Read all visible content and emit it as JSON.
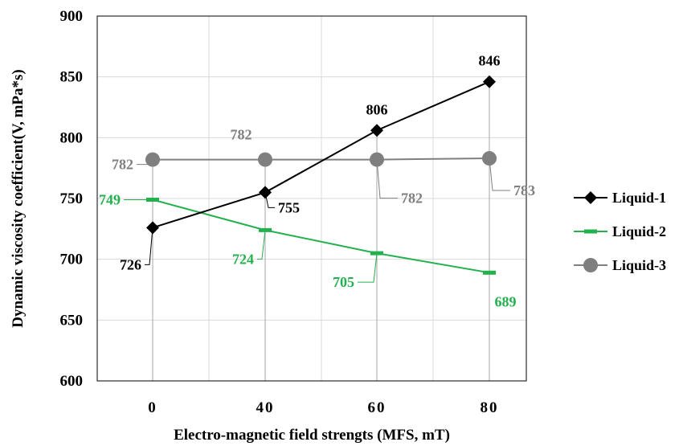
{
  "chart_data": {
    "type": "line",
    "xlabel": "Electro-magnetic field strengts (MFS, mT)",
    "ylabel": "Dynamic viscosity coefficient(V, mPa*s)",
    "categories": [
      "0",
      "40",
      "60",
      "80"
    ],
    "ylim": [
      600,
      900
    ],
    "yticks": [
      "600",
      "650",
      "700",
      "750",
      "800",
      "850",
      "900"
    ],
    "grid": true,
    "legend_position": "right",
    "series": [
      {
        "name": "Liquid-1",
        "values": [
          726,
          755,
          806,
          846
        ],
        "labels": [
          "726",
          "755",
          "806",
          "846"
        ],
        "color": "#000000",
        "marker": "diamond"
      },
      {
        "name": "Liquid-2",
        "values": [
          749,
          724,
          705,
          689
        ],
        "labels": [
          "749",
          "724",
          "705",
          "689"
        ],
        "color": "#22b14c",
        "marker": "dash"
      },
      {
        "name": "Liquid-3",
        "values": [
          782,
          782,
          782,
          783
        ],
        "labels": [
          "782",
          "782",
          "782",
          "783"
        ],
        "color": "#7f7f7f",
        "marker": "circle"
      }
    ]
  }
}
